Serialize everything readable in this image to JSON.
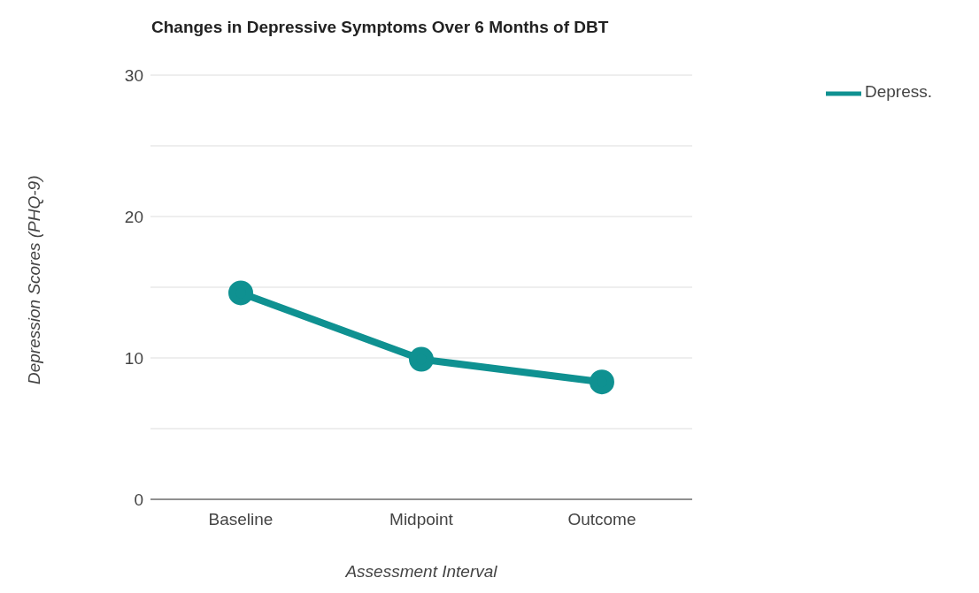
{
  "chart_data": {
    "type": "line",
    "title": "Changes in Depressive Symptoms Over 6 Months of DBT",
    "xlabel": "Assessment Interval",
    "ylabel": "Depression Scores (PHQ-9)",
    "categories": [
      "Baseline",
      "Midpoint",
      "Outcome"
    ],
    "series": [
      {
        "name": "Depress.",
        "color": "#0f9191",
        "values": [
          14.6,
          9.9,
          8.3
        ]
      }
    ],
    "ylim": [
      0,
      30
    ],
    "yticks": [
      0,
      {
        "value": 5,
        "label": null
      },
      10,
      {
        "value": 15,
        "label": null
      },
      20,
      {
        "value": 25,
        "label": null
      },
      30
    ],
    "grid": "y",
    "legend": "top right",
    "marker": "circle"
  }
}
